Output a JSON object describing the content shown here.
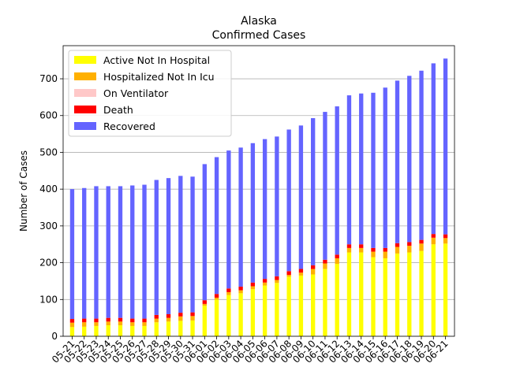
{
  "chart_data": {
    "type": "bar",
    "stacked": true,
    "title": "Alaska",
    "subtitle": "Confirmed Cases",
    "xlabel": "",
    "ylabel": "Number of Cases",
    "ylim": [
      0,
      790
    ],
    "yticks": [
      0,
      100,
      200,
      300,
      400,
      500,
      600,
      700
    ],
    "grid": "horizontal",
    "legend_position": "top-left",
    "categories": [
      "05-21",
      "05-22",
      "05-23",
      "05-24",
      "05-25",
      "05-26",
      "05-27",
      "05-28",
      "05-29",
      "05-30",
      "05-31",
      "06-01",
      "06-02",
      "06-03",
      "06-04",
      "06-05",
      "06-06",
      "06-07",
      "06-08",
      "06-09",
      "06-10",
      "06-11",
      "06-12",
      "06-13",
      "06-14",
      "06-15",
      "06-16",
      "06-17",
      "06-18",
      "06-19",
      "06-20",
      "06-21"
    ],
    "series": [
      {
        "name": "Active Not In Hospital",
        "color": "#ffff00",
        "values": [
          25,
          26,
          28,
          30,
          30,
          28,
          28,
          38,
          40,
          42,
          43,
          83,
          100,
          112,
          117,
          128,
          138,
          145,
          162,
          165,
          168,
          183,
          197,
          228,
          228,
          215,
          212,
          225,
          228,
          232,
          250,
          252
        ]
      },
      {
        "name": "Hospitalized Not In Icu",
        "color": "#ffb000",
        "values": [
          12,
          12,
          10,
          10,
          10,
          10,
          10,
          10,
          10,
          12,
          12,
          5,
          5,
          8,
          8,
          8,
          8,
          8,
          5,
          8,
          15,
          15,
          15,
          12,
          12,
          15,
          18,
          18,
          18,
          20,
          18,
          15
        ]
      },
      {
        "name": "On Ventilator",
        "color": "#ffc8c8",
        "values": [
          0,
          0,
          0,
          0,
          0,
          0,
          0,
          0,
          0,
          0,
          0,
          0,
          0,
          0,
          0,
          0,
          0,
          0,
          0,
          0,
          0,
          0,
          0,
          0,
          0,
          0,
          0,
          0,
          0,
          0,
          0,
          0
        ]
      },
      {
        "name": "Death",
        "color": "#ff0000",
        "values": [
          10,
          10,
          10,
          10,
          10,
          10,
          10,
          10,
          10,
          10,
          10,
          10,
          10,
          10,
          10,
          10,
          10,
          10,
          10,
          10,
          10,
          10,
          10,
          10,
          10,
          10,
          10,
          10,
          10,
          10,
          10,
          10
        ]
      },
      {
        "name": "Recovered",
        "color": "#6464ff",
        "values": [
          353,
          355,
          360,
          358,
          358,
          362,
          364,
          367,
          370,
          372,
          369,
          370,
          372,
          375,
          378,
          379,
          380,
          380,
          385,
          390,
          400,
          402,
          403,
          405,
          410,
          422,
          436,
          442,
          452,
          460,
          464,
          478
        ]
      }
    ]
  }
}
